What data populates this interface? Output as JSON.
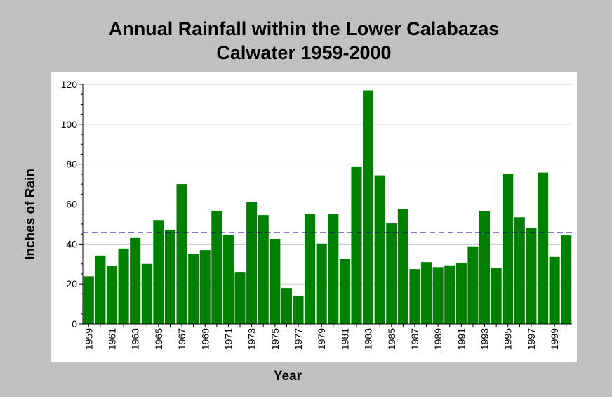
{
  "chart_data": {
    "type": "bar",
    "title_lines": [
      "Annual Rainfall within the Lower Calabazas",
      "Calwater 1959-2000"
    ],
    "xlabel": "Year",
    "ylabel": "Inches of Rain",
    "ylim": [
      0,
      120
    ],
    "yticks": [
      "0",
      "20",
      "40",
      "60",
      "80",
      "100",
      "120"
    ],
    "x_tick_labels": [
      "1959",
      "1961",
      "1963",
      "1965",
      "1967",
      "1969",
      "1971",
      "1973",
      "1975",
      "1977",
      "1979",
      "1981",
      "1983",
      "1985",
      "1987",
      "1989",
      "1991",
      "1993",
      "1995",
      "1997",
      "1999"
    ],
    "categories": [
      "1959",
      "1960",
      "1961",
      "1962",
      "1963",
      "1964",
      "1965",
      "1966",
      "1967",
      "1968",
      "1969",
      "1970",
      "1971",
      "1972",
      "1973",
      "1974",
      "1975",
      "1976",
      "1977",
      "1978",
      "1979",
      "1980",
      "1981",
      "1982",
      "1983",
      "1984",
      "1985",
      "1986",
      "1987",
      "1988",
      "1989",
      "1990",
      "1991",
      "1992",
      "1993",
      "1994",
      "1995",
      "1996",
      "1997",
      "1998",
      "1999",
      "2000"
    ],
    "values": [
      23.8,
      34.2,
      29.2,
      37.7,
      43.0,
      30.0,
      52.0,
      47.2,
      70.0,
      34.9,
      36.9,
      56.7,
      44.5,
      26.0,
      61.2,
      54.5,
      42.6,
      17.9,
      14.1,
      55.0,
      40.2,
      55.0,
      32.4,
      78.9,
      117.0,
      74.4,
      50.3,
      57.4,
      27.4,
      30.9,
      28.4,
      29.3,
      30.6,
      38.8,
      56.4,
      28.0,
      75.1,
      53.4,
      48.1,
      75.8,
      33.5,
      44.3
    ],
    "mean_line": 45.7,
    "bar_color": "#008000",
    "mean_line_color": "#00008b",
    "grid": true,
    "legend": "none"
  }
}
